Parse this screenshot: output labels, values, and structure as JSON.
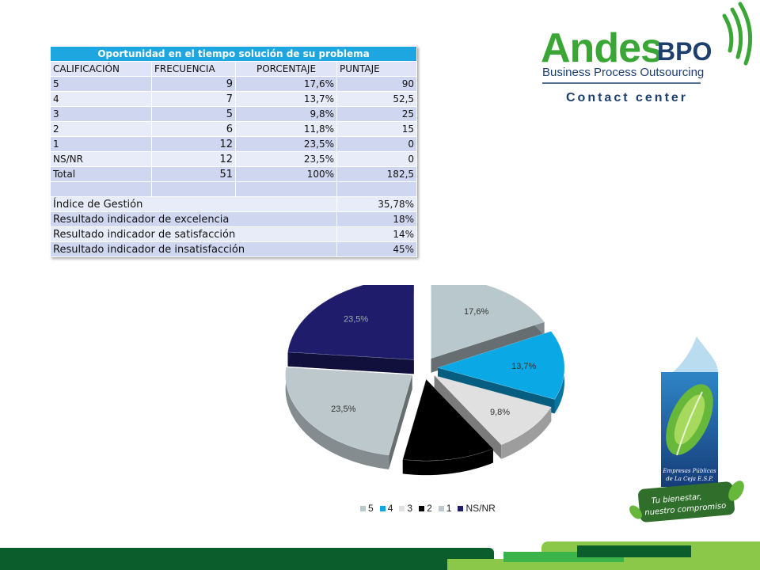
{
  "table": {
    "title": "Oportunidad en el tiempo solución de su problema",
    "headers": [
      "CALIFICACIÓN",
      "FRECUENCIA",
      "PORCENTAJE",
      "PUNTAJE"
    ],
    "rows": [
      [
        "5",
        "9",
        "17,6%",
        "90"
      ],
      [
        "4",
        "7",
        "13,7%",
        "52,5"
      ],
      [
        "3",
        "5",
        "9,8%",
        "25"
      ],
      [
        "2",
        "6",
        "11,8%",
        "15"
      ],
      [
        "1",
        "12",
        "23,5%",
        "0"
      ],
      [
        "NS/NR",
        "12",
        "23,5%",
        "0"
      ],
      [
        "Total",
        "51",
        "100%",
        "182,5"
      ]
    ],
    "indicators": [
      {
        "label": "Índice de Gestión",
        "value": "35,78%"
      },
      {
        "label": "Resultado indicador de excelencia",
        "value": "18%"
      },
      {
        "label": "Resultado indicador de satisfacción",
        "value": "14%"
      },
      {
        "label": "Resultado indicador de insatisfacción",
        "value": "45%"
      }
    ]
  },
  "logo": {
    "brand_main": "Andes",
    "brand_suffix": "BPO",
    "tagline": "Business Process Outsourcing",
    "subtitle": "Contact center",
    "color_green": "#3aa635",
    "color_dark": "#1c3f6e"
  },
  "epm_logo": {
    "line1": "Empresas Públicas",
    "line2": "de La Ceja E.S.P.",
    "slogan1": "Tu bienestar,",
    "slogan2": "nuestro compromiso"
  },
  "chart_data": {
    "type": "pie",
    "categories": [
      "5",
      "4",
      "3",
      "2",
      "1",
      "NS/NR"
    ],
    "values": [
      17.6,
      13.7,
      9.8,
      11.8,
      23.5,
      23.5
    ],
    "data_labels": [
      "17,6%",
      "13,7%",
      "9,8%",
      "",
      "23,5%",
      "23,5%"
    ],
    "colors": [
      "#b9c8cd",
      "#0aa9e6",
      "#e0e0e0",
      "#000000",
      "#bcc8cc",
      "#1e1c6b"
    ],
    "title": "",
    "legend_position": "bottom",
    "exploded": true,
    "style": "3d"
  },
  "footer": {
    "colors": [
      "#0b5e2c",
      "#8bc84a",
      "#3ab34a"
    ]
  }
}
